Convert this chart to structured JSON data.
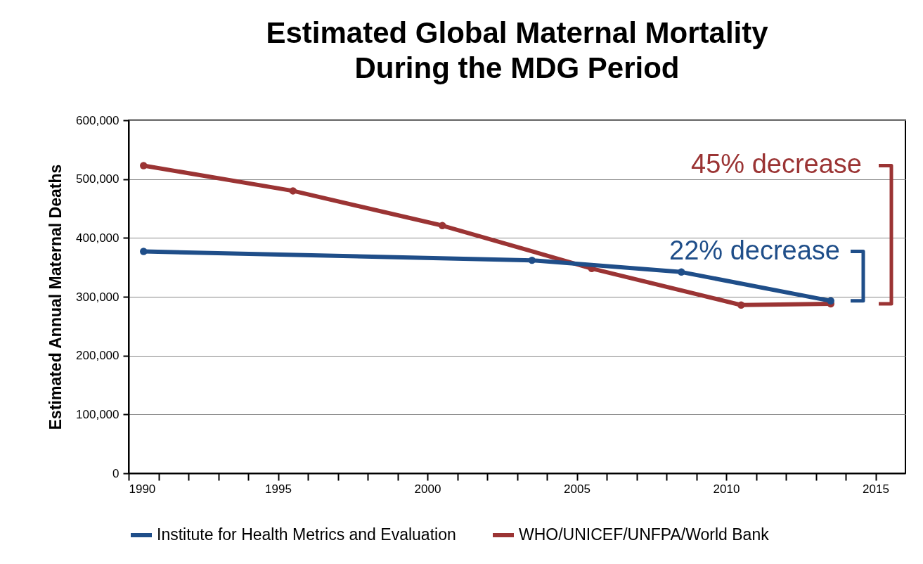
{
  "chart_data": {
    "type": "line",
    "title": "Estimated Global Maternal Mortality\nDuring the MDG Period",
    "ylabel": "Estimated Annual Maternal Deaths",
    "xlim": [
      1990,
      2016
    ],
    "ylim": [
      0,
      600000
    ],
    "xticks": [
      1990,
      {
        "value": 1991,
        "label": null
      },
      {
        "value": 1992,
        "label": null
      },
      {
        "value": 1993,
        "label": null
      },
      {
        "value": 1994,
        "label": null
      },
      1995,
      {
        "value": 1996,
        "label": null
      },
      {
        "value": 1997,
        "label": null
      },
      {
        "value": 1998,
        "label": null
      },
      {
        "value": 1999,
        "label": null
      },
      2000,
      {
        "value": 2001,
        "label": null
      },
      {
        "value": 2002,
        "label": null
      },
      {
        "value": 2003,
        "label": null
      },
      {
        "value": 2004,
        "label": null
      },
      2005,
      {
        "value": 2006,
        "label": null
      },
      {
        "value": 2007,
        "label": null
      },
      {
        "value": 2008,
        "label": null
      },
      {
        "value": 2009,
        "label": null
      },
      2010,
      {
        "value": 2011,
        "label": null
      },
      {
        "value": 2012,
        "label": null
      },
      {
        "value": 2013,
        "label": null
      },
      {
        "value": 2014,
        "label": null
      },
      2015
    ],
    "yticks": [
      0,
      {
        "value": 100000,
        "label": "100,000"
      },
      {
        "value": 200000,
        "label": "200,000"
      },
      {
        "value": 300000,
        "label": "300,000"
      },
      {
        "value": 400000,
        "label": "400,000"
      },
      {
        "value": 500000,
        "label": "500,000"
      },
      {
        "value": 600000,
        "label": "600,000"
      }
    ],
    "grid": "y",
    "legend": "bottom",
    "marker": "circle",
    "line_style": "solid",
    "series": [
      {
        "name": "Institute for Health Metrics and Evaluation",
        "color": "#1f4e89",
        "x": [
          1990.5,
          2003.5,
          2008.5,
          2013.5
        ],
        "values": [
          377000,
          362000,
          342000,
          293000
        ]
      },
      {
        "name": "WHO/UNICEF/UNFPA/World Bank",
        "color": "#9b3434",
        "x": [
          1990.5,
          1995.5,
          2000.5,
          2005.5,
          2010.5,
          2013.5
        ],
        "values": [
          523000,
          480000,
          421000,
          348000,
          286000,
          288000
        ]
      }
    ],
    "annotations": [
      "22% decrease",
      "45% decrease"
    ]
  }
}
